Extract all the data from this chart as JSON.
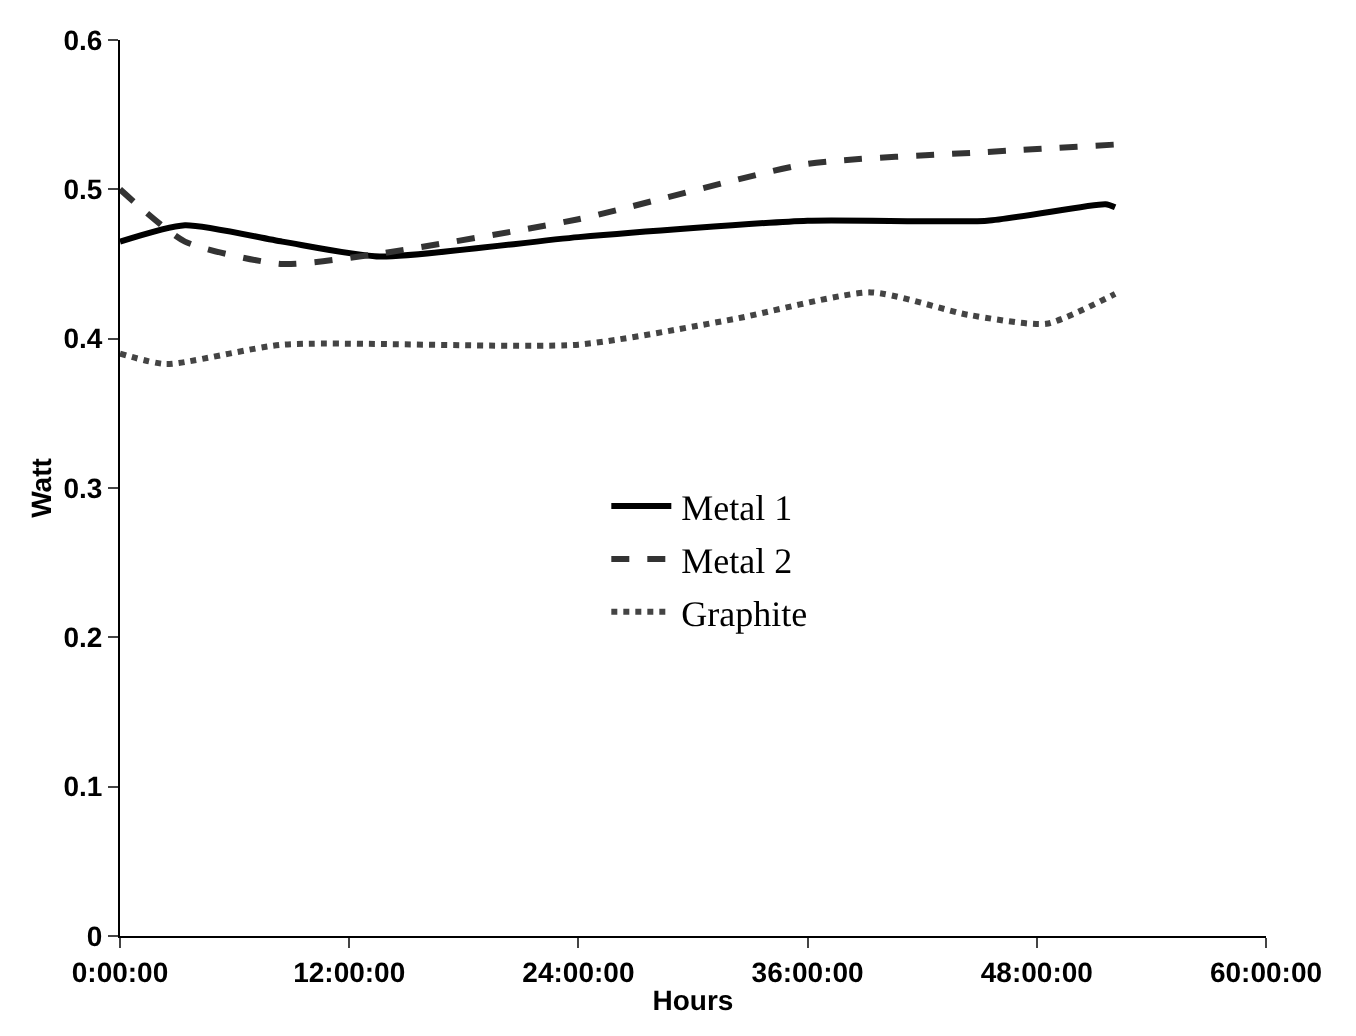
{
  "chart_data": {
    "type": "line",
    "xlabel": "Hours",
    "ylabel": "Watt",
    "xlim": [
      0,
      60
    ],
    "xticks": [
      {
        "value": 0,
        "label": "0:00:00"
      },
      {
        "value": 12,
        "label": "12:00:00"
      },
      {
        "value": 24,
        "label": "24:00:00"
      },
      {
        "value": 36,
        "label": "36:00:00"
      },
      {
        "value": 48,
        "label": "48:00:00"
      },
      {
        "value": 60,
        "label": "60:00:00"
      }
    ],
    "ylim": [
      0,
      0.6
    ],
    "yticks": [
      0,
      0.1,
      0.2,
      0.3,
      0.4,
      0.5,
      0.6
    ],
    "legend": "center",
    "marker": "none",
    "series": [
      {
        "name": "Metal 1",
        "color": "#000000",
        "line_style": "solid",
        "x": [
          0,
          3.4,
          8.5,
          13.6,
          24,
          36,
          45.4,
          51.6,
          52.1
        ],
        "values": [
          0.465,
          0.476,
          0.465,
          0.455,
          0.468,
          0.479,
          0.479,
          0.49,
          0.488
        ]
      },
      {
        "name": "Metal 2",
        "color": "#333333",
        "line_style": "dashed",
        "x": [
          0,
          3.4,
          8.5,
          13.6,
          24,
          36,
          45.4,
          52.1
        ],
        "values": [
          0.5,
          0.465,
          0.45,
          0.457,
          0.48,
          0.517,
          0.525,
          0.53
        ]
      },
      {
        "name": "Graphite",
        "color": "#444444",
        "line_style": "dotted",
        "x": [
          0,
          2.4,
          8.5,
          24,
          32.1,
          39.3,
          44.4,
          48.5,
          52.1
        ],
        "values": [
          0.39,
          0.383,
          0.396,
          0.396,
          0.413,
          0.431,
          0.416,
          0.41,
          0.43
        ]
      }
    ]
  }
}
